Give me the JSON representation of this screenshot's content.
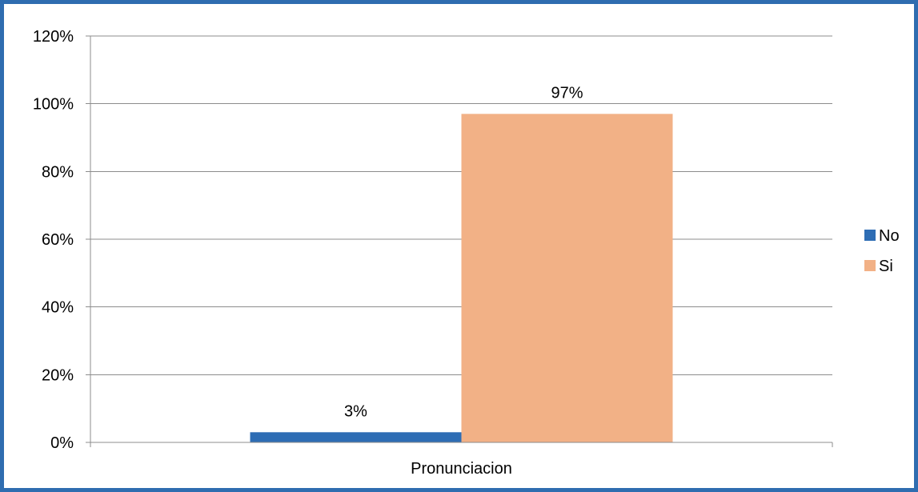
{
  "chart_data": {
    "type": "bar",
    "categories": [
      "Pronunciacion"
    ],
    "series": [
      {
        "name": "No",
        "values": [
          3
        ],
        "data_labels": [
          "3%"
        ],
        "color": "#2e6db4"
      },
      {
        "name": "Si",
        "values": [
          97
        ],
        "data_labels": [
          "97%"
        ],
        "color": "#f2b186"
      }
    ],
    "y_ticks": [
      "0%",
      "20%",
      "40%",
      "60%",
      "80%",
      "100%",
      "120%"
    ],
    "ylim": [
      0,
      120
    ],
    "y_unit": "%",
    "grid": true,
    "legend_position": "right",
    "frame_color": "#2f6db0",
    "title": "",
    "xlabel": "",
    "ylabel": ""
  }
}
